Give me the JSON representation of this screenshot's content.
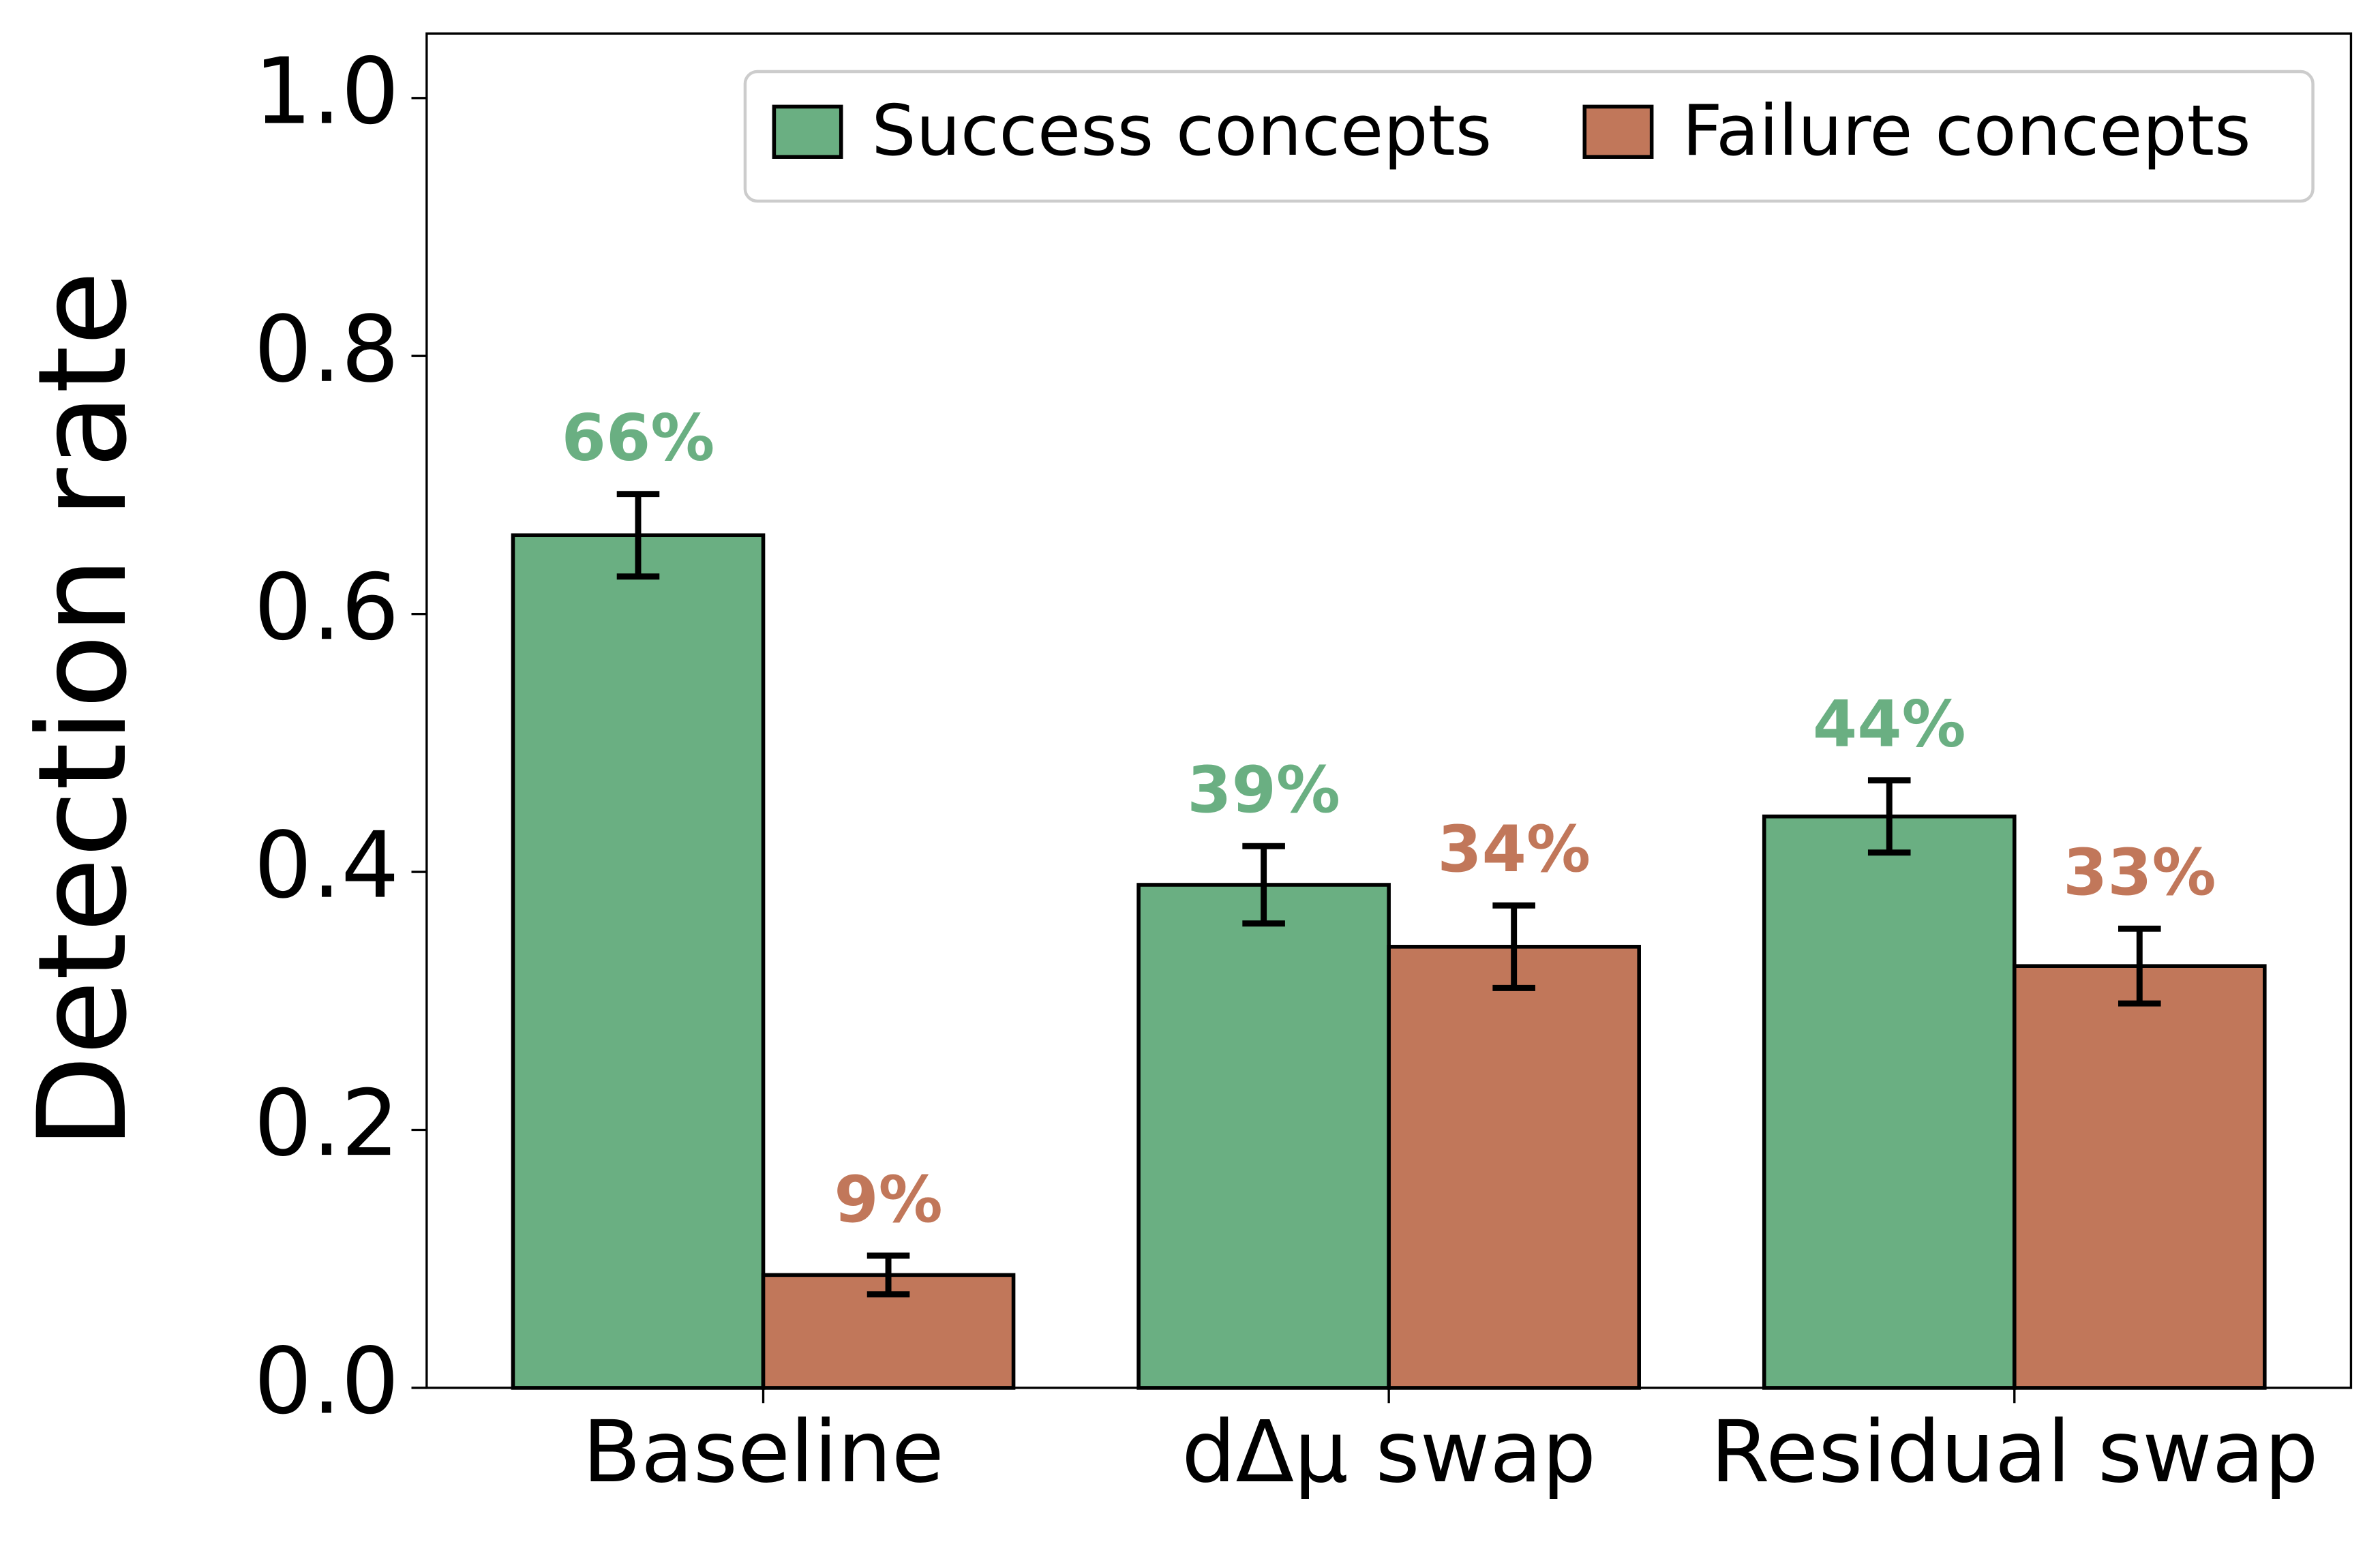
{
  "chart_data": {
    "type": "bar",
    "y_label": "Detection rate",
    "categories": [
      "Baseline",
      "dΔμ swap",
      "Residual swap"
    ],
    "series": [
      {
        "name": "Success concepts",
        "color": "#6aaf82",
        "values": [
          0.661,
          0.39,
          0.443
        ],
        "errors": [
          0.032,
          0.03,
          0.028
        ],
        "value_labels": [
          "66%",
          "39%",
          "44%"
        ]
      },
      {
        "name": "Failure concepts",
        "color": "#c1775a",
        "values": [
          0.0875,
          0.342,
          0.327
        ],
        "errors": [
          0.015,
          0.032,
          0.029
        ],
        "value_labels": [
          "9%",
          "34%",
          "33%"
        ]
      }
    ],
    "ylim": [
      0,
      1.05
    ],
    "yticks": [
      {
        "value": 0,
        "label": "0.0"
      },
      0.2,
      0.4,
      0.6,
      0.8,
      {
        "value": 1,
        "label": "1.0"
      }
    ],
    "legend": "upper right",
    "grid": false
  }
}
